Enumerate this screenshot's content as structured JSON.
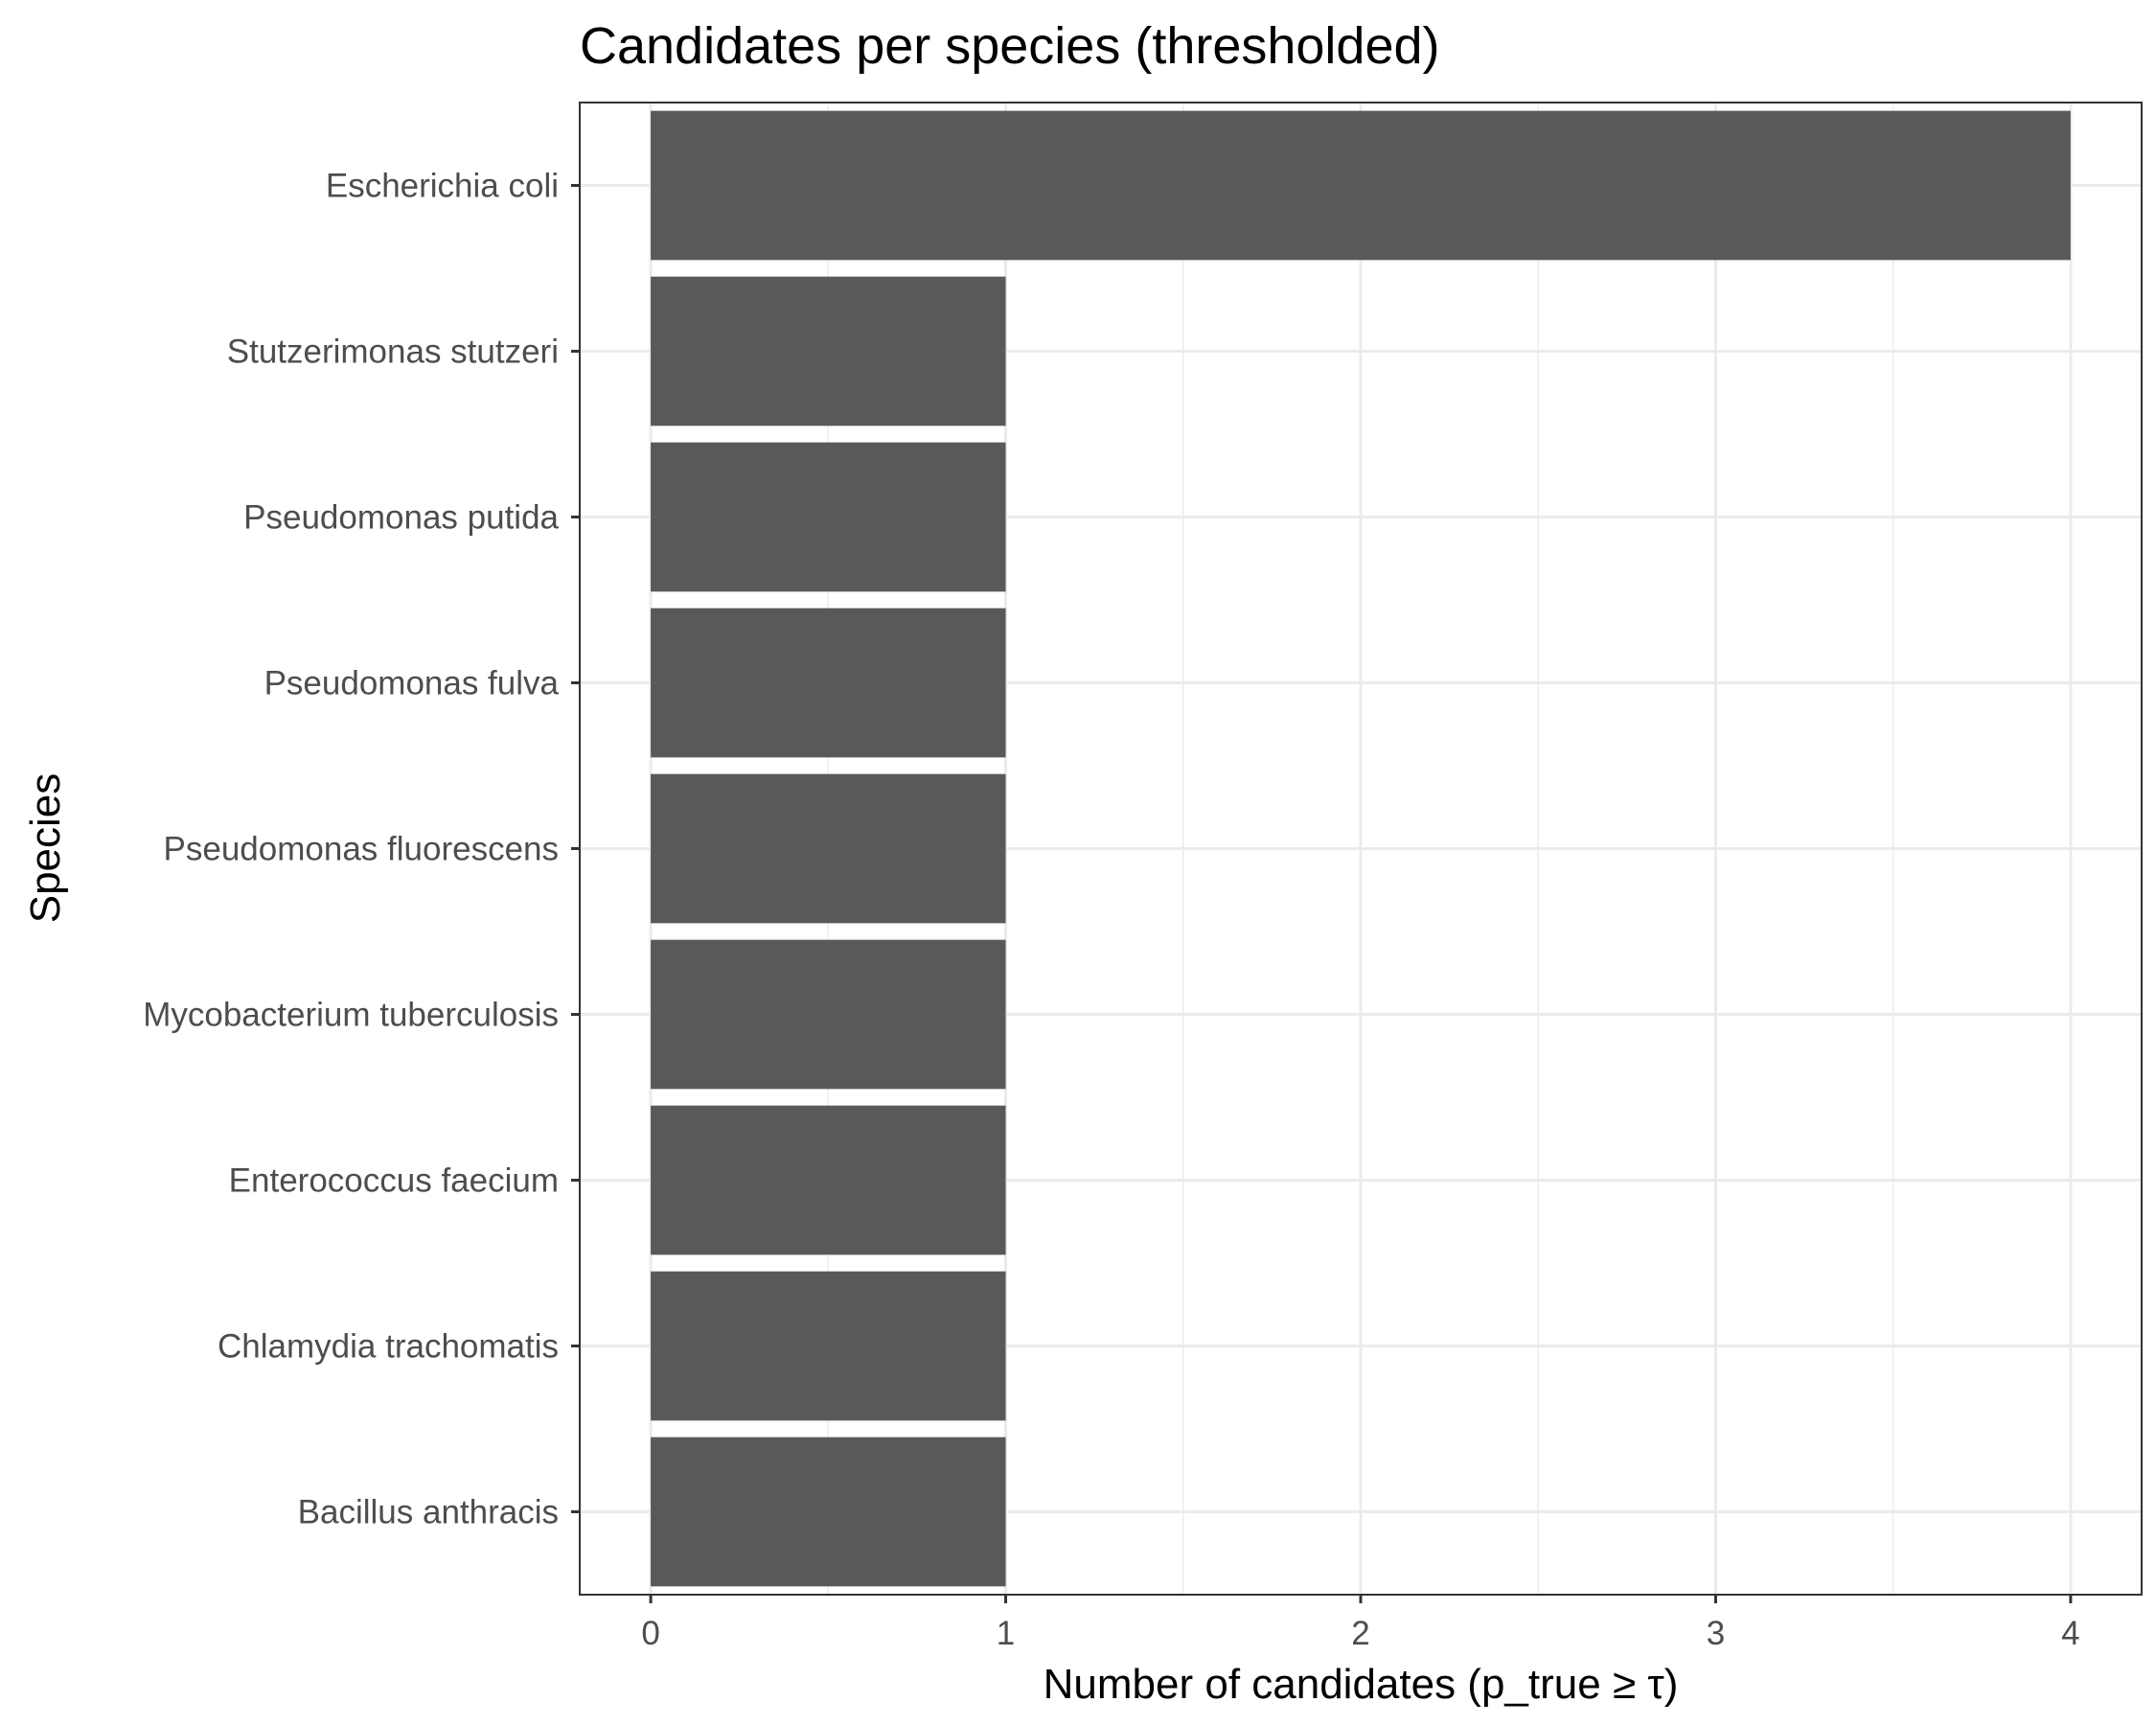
{
  "chart_data": {
    "type": "bar",
    "orientation": "horizontal",
    "title": "Candidates per species (thresholded)",
    "xlabel": "Number of candidates (p_true ≥ τ)",
    "ylabel": "Species",
    "categories": [
      "Escherichia coli",
      "Stutzerimonas stutzeri",
      "Pseudomonas putida",
      "Pseudomonas fulva",
      "Pseudomonas fluorescens",
      "Mycobacterium tuberculosis",
      "Enterococcus faecium",
      "Chlamydia trachomatis",
      "Bacillus anthracis"
    ],
    "values": [
      4,
      1,
      1,
      1,
      1,
      1,
      1,
      1,
      1
    ],
    "xlim": [
      -0.2,
      4.2
    ],
    "xticks": [
      0,
      1,
      2,
      3,
      4
    ],
    "grid": true,
    "legend": "none",
    "bar_color": "#595959",
    "grid_color": "#ebebeb",
    "panel_border_color": "#333333"
  }
}
